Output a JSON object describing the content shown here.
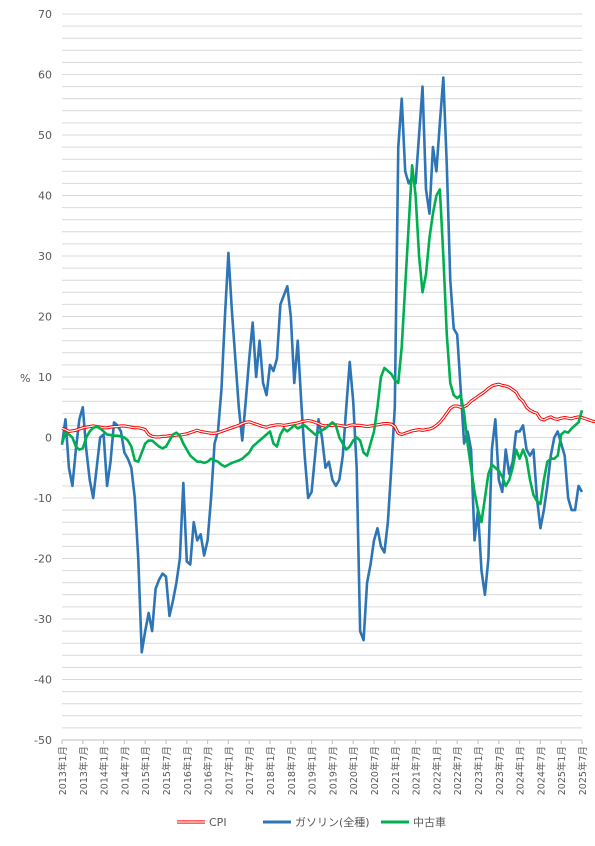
{
  "chart_data": {
    "type": "line",
    "ylabel": "%",
    "ylim": [
      -50,
      70
    ],
    "yticks": [
      70,
      60,
      50,
      40,
      30,
      20,
      10,
      0,
      -10,
      -20,
      -30,
      -40,
      -50
    ],
    "xticks": [
      "2013年1月",
      "2013年7月",
      "2014年1月",
      "2014年7月",
      "2015年1月",
      "2015年7月",
      "2016年1月",
      "2016年7月",
      "2017年1月",
      "2017年7月",
      "2018年1月",
      "2018年7月",
      "2019年1月",
      "2019年7月",
      "2020年1月",
      "2020年7月",
      "2021年1月",
      "2021年7月",
      "2022年1月",
      "2022年7月",
      "2023年1月",
      "2023年7月",
      "2024年1月",
      "2024年7月",
      "2025年1月",
      "2025年7月"
    ],
    "x_start": "2013年1月",
    "grid": true,
    "legend_position": "bottom",
    "series": [
      {
        "name": "CPI",
        "color": "#ff0000",
        "style": "double",
        "values": [
          1.5,
          1.3,
          1.0,
          1.1,
          1.2,
          1.4,
          1.6,
          1.7,
          1.8,
          1.9,
          1.8,
          1.7,
          1.6,
          1.6,
          1.7,
          1.8,
          1.8,
          1.9,
          1.9,
          1.8,
          1.7,
          1.6,
          1.6,
          1.5,
          1.3,
          0.5,
          0.2,
          0.1,
          0.1,
          0.2,
          0.2,
          0.3,
          0.3,
          0.4,
          0.4,
          0.5,
          0.6,
          0.8,
          1.0,
          1.2,
          1.0,
          0.9,
          0.8,
          0.7,
          0.7,
          0.8,
          1.0,
          1.2,
          1.4,
          1.6,
          1.8,
          2.0,
          2.3,
          2.5,
          2.6,
          2.4,
          2.2,
          2.0,
          1.8,
          1.7,
          1.9,
          2.0,
          2.1,
          2.1,
          2.0,
          2.1,
          2.2,
          2.3,
          2.4,
          2.6,
          2.7,
          2.8,
          2.7,
          2.5,
          2.3,
          2.0,
          1.9,
          2.0,
          2.0,
          2.1,
          2.0,
          1.9,
          1.8,
          2.0,
          2.1,
          2.0,
          2.0,
          1.9,
          1.8,
          1.9,
          2.0,
          2.1,
          2.2,
          2.3,
          2.3,
          2.2,
          1.8,
          0.7,
          0.5,
          0.7,
          0.9,
          1.1,
          1.2,
          1.3,
          1.2,
          1.3,
          1.4,
          1.6,
          2.0,
          2.5,
          3.2,
          4.0,
          4.8,
          5.2,
          5.2,
          5.0,
          5.1,
          5.4,
          6.0,
          6.4,
          6.8,
          7.2,
          7.6,
          8.1,
          8.5,
          8.7,
          8.8,
          8.6,
          8.5,
          8.3,
          7.9,
          7.5,
          6.5,
          6.0,
          5.0,
          4.5,
          4.2,
          4.0,
          3.1,
          2.9,
          3.2,
          3.4,
          3.1,
          3.0,
          3.2,
          3.3,
          3.2,
          3.1,
          3.3,
          3.4,
          3.3,
          3.1,
          2.9,
          2.7,
          2.6,
          2.7,
          2.8,
          2.9,
          2.8,
          2.7,
          2.6,
          2.5,
          2.6,
          2.7,
          2.8
        ]
      },
      {
        "name": "ガソリン(全種)",
        "color": "#2e75b6",
        "style": "solid",
        "values": [
          -1.2,
          3.0,
          -5.0,
          -8.0,
          -2.0,
          3.0,
          5.0,
          -2.0,
          -7.0,
          -10.0,
          -5.0,
          0.0,
          0.5,
          -8.0,
          -4.0,
          2.5,
          2.0,
          1.0,
          -2.5,
          -3.5,
          -5.0,
          -10.0,
          -20.0,
          -35.5,
          -32.0,
          -29.0,
          -32.0,
          -25.0,
          -23.5,
          -22.5,
          -23.0,
          -29.5,
          -27.0,
          -24.0,
          -20.0,
          -7.5,
          -20.5,
          -21.0,
          -14.0,
          -17.0,
          -16.0,
          -19.5,
          -17.0,
          -10.0,
          -1.0,
          1.0,
          8.0,
          20.0,
          30.5,
          21.0,
          13.0,
          5.0,
          -0.5,
          6.0,
          13.0,
          19.0,
          10.0,
          16.0,
          9.0,
          7.0,
          12.0,
          11.0,
          13.0,
          22.0,
          23.5,
          25.0,
          20.0,
          9.0,
          16.0,
          6.0,
          -3.0,
          -10.0,
          -9.0,
          -3.0,
          3.0,
          0.0,
          -5.0,
          -4.0,
          -7.0,
          -8.0,
          -7.0,
          -3.0,
          5.0,
          12.5,
          6.0,
          -5.0,
          -32.0,
          -33.5,
          -24.0,
          -21.0,
          -17.0,
          -15.0,
          -18.0,
          -19.0,
          -14.0,
          -5.0,
          5.0,
          48.0,
          56.0,
          44.0,
          42.0,
          43.0,
          42.0,
          50.0,
          58.0,
          41.0,
          37.0,
          48.0,
          44.0,
          52.0,
          59.5,
          45.0,
          26.0,
          18.0,
          17.0,
          8.0,
          -1.0,
          1.0,
          -2.0,
          -17.0,
          -12.0,
          -22.0,
          -26.0,
          -20.0,
          -2.0,
          3.0,
          -7.0,
          -9.0,
          -2.0,
          -6.0,
          -4.0,
          1.0,
          1.0,
          2.0,
          -2.0,
          -3.0,
          -2.0,
          -10.0,
          -15.0,
          -12.0,
          -8.0,
          -3.0,
          0.0,
          1.0,
          -1.0,
          -3.0,
          -10.0,
          -12.0,
          -12.0,
          -8.0,
          -9.0
        ]
      },
      {
        "name": "中古車",
        "color": "#00b050",
        "style": "solid",
        "values": [
          -1.0,
          0.8,
          0.5,
          0.0,
          -1.5,
          -2.0,
          -1.8,
          0.0,
          1.0,
          1.6,
          1.8,
          1.5,
          1.0,
          0.5,
          0.4,
          0.3,
          0.3,
          0.2,
          0.0,
          -0.5,
          -1.5,
          -3.8,
          -4.0,
          -2.5,
          -1.0,
          -0.5,
          -0.5,
          -1.0,
          -1.5,
          -1.8,
          -1.5,
          -0.5,
          0.5,
          0.8,
          0.3,
          -1.0,
          -2.0,
          -3.0,
          -3.5,
          -4.0,
          -4.0,
          -4.2,
          -4.0,
          -3.5,
          -3.8,
          -4.0,
          -4.5,
          -4.8,
          -4.5,
          -4.2,
          -4.0,
          -3.8,
          -3.5,
          -3.0,
          -2.5,
          -1.5,
          -1.0,
          -0.5,
          0.0,
          0.5,
          1.0,
          -1.0,
          -1.5,
          0.5,
          1.5,
          1.0,
          1.5,
          2.0,
          1.5,
          1.8,
          2.0,
          1.5,
          1.0,
          0.5,
          0.8,
          1.2,
          1.5,
          2.0,
          2.5,
          2.0,
          0.0,
          -1.0,
          -2.0,
          -1.5,
          -0.5,
          0.0,
          -0.5,
          -2.5,
          -3.0,
          -1.0,
          1.0,
          5.0,
          10.0,
          11.5,
          11.0,
          10.5,
          9.5,
          9.0,
          15.0,
          25.0,
          35.0,
          45.0,
          40.0,
          30.0,
          24.0,
          27.0,
          33.0,
          37.0,
          40.0,
          41.0,
          30.0,
          17.0,
          9.0,
          7.0,
          6.5,
          7.0,
          4.0,
          -1.0,
          -5.0,
          -9.0,
          -12.0,
          -14.0,
          -10.0,
          -6.0,
          -4.5,
          -5.0,
          -5.5,
          -6.5,
          -8.0,
          -7.0,
          -5.0,
          -2.0,
          -3.5,
          -2.0,
          -3.5,
          -7.0,
          -9.5,
          -10.5,
          -11.0,
          -7.0,
          -4.0,
          -3.5,
          -3.5,
          -3.0,
          0.5,
          1.0,
          0.8,
          1.5,
          2.0,
          2.5,
          4.5
        ]
      }
    ]
  }
}
